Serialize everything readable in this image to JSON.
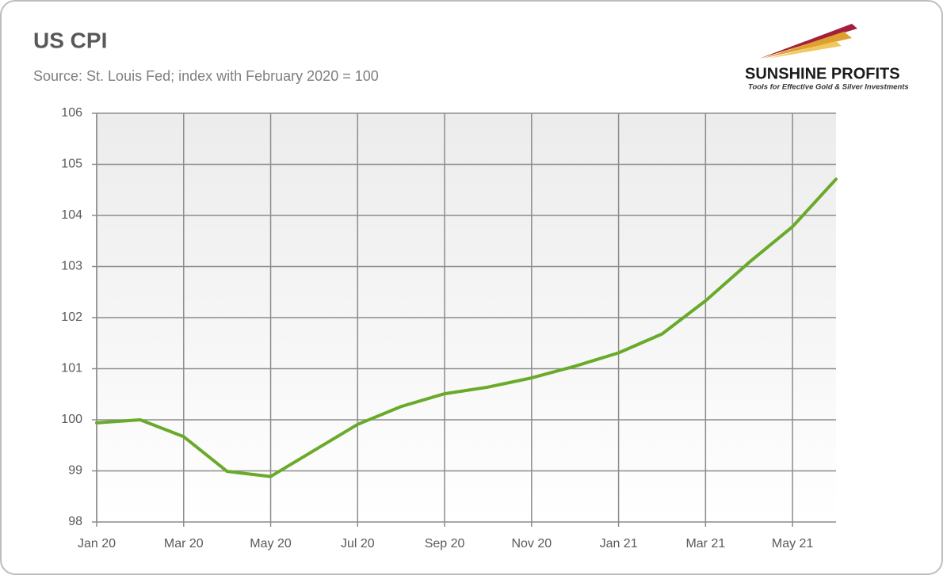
{
  "chart_data": {
    "type": "line",
    "title": "US CPI",
    "subtitle": "Source: St. Louis Fed; index with February 2020 = 100",
    "categories": [
      "Jan 20",
      null,
      "Mar 20",
      null,
      "May 20",
      null,
      "Jul 20",
      null,
      "Sep 20",
      null,
      "Nov 20",
      null,
      "Jan 21",
      null,
      "Mar 21",
      null,
      "May 21",
      null
    ],
    "series": [
      {
        "color": "#6aaa2a",
        "values": [
          99.94,
          100.0,
          99.67,
          98.99,
          98.89,
          99.4,
          99.91,
          100.26,
          100.51,
          100.64,
          100.82,
          101.05,
          101.31,
          101.68,
          102.33,
          103.08,
          103.78,
          104.71
        ]
      }
    ],
    "ylim": [
      98,
      106
    ],
    "yticks": [
      98,
      99,
      100,
      101,
      102,
      103,
      104,
      105,
      106
    ],
    "grid": true
  },
  "logo": {
    "name": "SUNSHINE PROFITS",
    "tagline": "Tools for Effective Gold & Silver Investments"
  }
}
